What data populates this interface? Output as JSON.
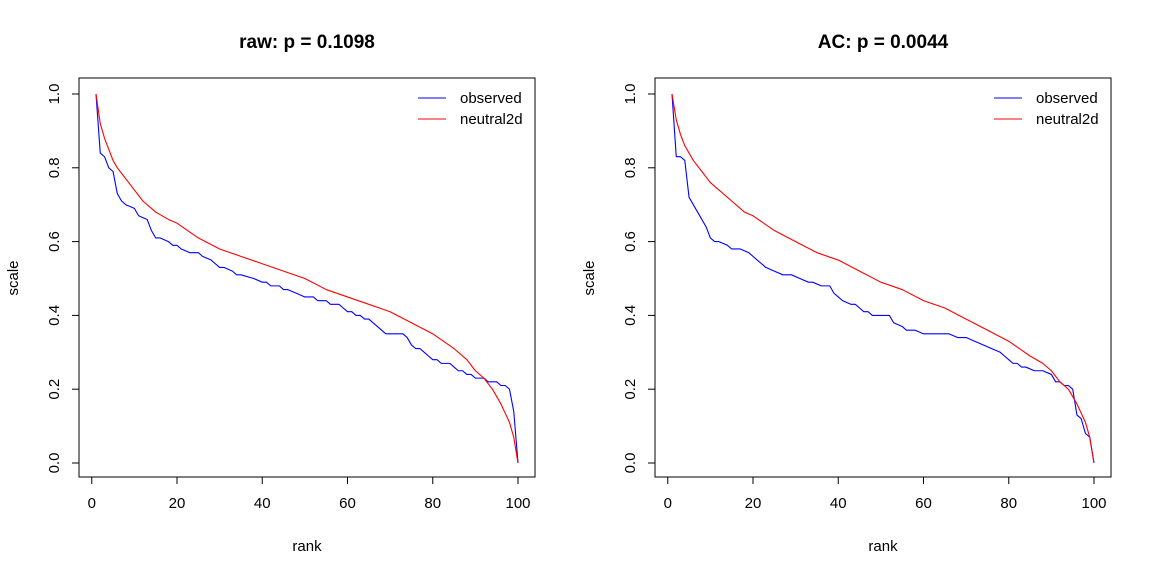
{
  "chart_data": [
    {
      "type": "line",
      "title": "raw: p = 0.1098",
      "xlabel": "rank",
      "ylabel": "scale",
      "xlim": [
        1,
        100
      ],
      "ylim": [
        0,
        1
      ],
      "xticks": [
        0,
        20,
        40,
        60,
        80,
        100
      ],
      "yticks": [
        0.0,
        0.2,
        0.4,
        0.6,
        0.8,
        1.0
      ],
      "xtick_labels": [
        "0",
        "20",
        "40",
        "60",
        "80",
        "100"
      ],
      "ytick_labels": [
        "0.0",
        "0.2",
        "0.4",
        "0.6",
        "0.8",
        "1.0"
      ],
      "legend_position": "top-right",
      "grid": false,
      "series": [
        {
          "name": "observed",
          "color": "#0000ff",
          "x": [
            1,
            2,
            3,
            4,
            5,
            6,
            7,
            8,
            10,
            11,
            13,
            14,
            15,
            16,
            18,
            19,
            20,
            21,
            23,
            25,
            26,
            28,
            29,
            30,
            31,
            33,
            34,
            35,
            38,
            40,
            41,
            42,
            43,
            44,
            45,
            46,
            48,
            50,
            52,
            53,
            55,
            56,
            58,
            59,
            60,
            61,
            62,
            63,
            64,
            65,
            66,
            67,
            68,
            69,
            70,
            71,
            72,
            73,
            74,
            75,
            76,
            77,
            78,
            79,
            80,
            81,
            82,
            83,
            84,
            85,
            86,
            87,
            88,
            89,
            90,
            91,
            92,
            93,
            94,
            95,
            96,
            97,
            98,
            99,
            100
          ],
          "y": [
            1.0,
            0.84,
            0.83,
            0.8,
            0.79,
            0.73,
            0.71,
            0.7,
            0.69,
            0.67,
            0.66,
            0.63,
            0.61,
            0.61,
            0.6,
            0.59,
            0.59,
            0.58,
            0.57,
            0.57,
            0.56,
            0.55,
            0.54,
            0.53,
            0.53,
            0.52,
            0.51,
            0.51,
            0.5,
            0.49,
            0.49,
            0.48,
            0.48,
            0.48,
            0.47,
            0.47,
            0.46,
            0.45,
            0.45,
            0.44,
            0.44,
            0.43,
            0.43,
            0.42,
            0.41,
            0.41,
            0.4,
            0.4,
            0.39,
            0.39,
            0.38,
            0.37,
            0.36,
            0.35,
            0.35,
            0.35,
            0.35,
            0.35,
            0.34,
            0.32,
            0.31,
            0.31,
            0.3,
            0.29,
            0.28,
            0.28,
            0.27,
            0.27,
            0.27,
            0.26,
            0.25,
            0.25,
            0.24,
            0.24,
            0.23,
            0.23,
            0.23,
            0.22,
            0.22,
            0.22,
            0.21,
            0.21,
            0.2,
            0.14,
            0.0
          ]
        },
        {
          "name": "neutral2d",
          "color": "#ff0000",
          "x": [
            1,
            2,
            3,
            4,
            5,
            6,
            8,
            10,
            12,
            15,
            18,
            20,
            25,
            30,
            35,
            40,
            45,
            50,
            55,
            60,
            65,
            70,
            75,
            80,
            85,
            88,
            90,
            92,
            94,
            96,
            98,
            99,
            100
          ],
          "y": [
            1.0,
            0.92,
            0.88,
            0.85,
            0.82,
            0.8,
            0.77,
            0.74,
            0.71,
            0.68,
            0.66,
            0.65,
            0.61,
            0.58,
            0.56,
            0.54,
            0.52,
            0.5,
            0.47,
            0.45,
            0.43,
            0.41,
            0.38,
            0.35,
            0.31,
            0.28,
            0.25,
            0.23,
            0.2,
            0.16,
            0.11,
            0.07,
            0.0
          ]
        }
      ]
    },
    {
      "type": "line",
      "title": "AC: p = 0.0044",
      "xlabel": "rank",
      "ylabel": "scale",
      "xlim": [
        1,
        100
      ],
      "ylim": [
        0,
        1
      ],
      "xticks": [
        0,
        20,
        40,
        60,
        80,
        100
      ],
      "yticks": [
        0.0,
        0.2,
        0.4,
        0.6,
        0.8,
        1.0
      ],
      "xtick_labels": [
        "0",
        "20",
        "40",
        "60",
        "80",
        "100"
      ],
      "ytick_labels": [
        "0.0",
        "0.2",
        "0.4",
        "0.6",
        "0.8",
        "1.0"
      ],
      "legend_position": "top-right",
      "grid": false,
      "series": [
        {
          "name": "observed",
          "color": "#0000ff",
          "x": [
            1,
            2,
            3,
            4,
            5,
            6,
            7,
            8,
            9,
            10,
            11,
            12,
            14,
            15,
            17,
            19,
            20,
            21,
            22,
            23,
            25,
            27,
            29,
            31,
            33,
            34,
            36,
            38,
            39,
            40,
            41,
            43,
            44,
            45,
            46,
            47,
            48,
            50,
            52,
            53,
            55,
            56,
            58,
            60,
            62,
            64,
            66,
            68,
            70,
            72,
            74,
            76,
            78,
            79,
            80,
            81,
            82,
            83,
            84,
            86,
            88,
            90,
            91,
            92,
            93,
            94,
            95,
            96,
            97,
            98,
            99,
            100
          ],
          "y": [
            1.0,
            0.83,
            0.83,
            0.82,
            0.72,
            0.7,
            0.68,
            0.66,
            0.64,
            0.61,
            0.6,
            0.6,
            0.59,
            0.58,
            0.58,
            0.57,
            0.56,
            0.55,
            0.54,
            0.53,
            0.52,
            0.51,
            0.51,
            0.5,
            0.49,
            0.49,
            0.48,
            0.48,
            0.46,
            0.45,
            0.44,
            0.43,
            0.43,
            0.42,
            0.41,
            0.41,
            0.4,
            0.4,
            0.4,
            0.38,
            0.37,
            0.36,
            0.36,
            0.35,
            0.35,
            0.35,
            0.35,
            0.34,
            0.34,
            0.33,
            0.32,
            0.31,
            0.3,
            0.29,
            0.28,
            0.27,
            0.27,
            0.26,
            0.26,
            0.25,
            0.25,
            0.24,
            0.22,
            0.22,
            0.21,
            0.21,
            0.2,
            0.13,
            0.12,
            0.08,
            0.07,
            0.0
          ]
        },
        {
          "name": "neutral2d",
          "color": "#ff0000",
          "x": [
            1,
            2,
            3,
            4,
            5,
            6,
            8,
            10,
            12,
            15,
            18,
            20,
            25,
            30,
            35,
            40,
            45,
            50,
            55,
            60,
            65,
            70,
            75,
            80,
            85,
            88,
            90,
            92,
            94,
            96,
            98,
            99,
            100
          ],
          "y": [
            1.0,
            0.93,
            0.89,
            0.86,
            0.84,
            0.82,
            0.79,
            0.76,
            0.74,
            0.71,
            0.68,
            0.67,
            0.63,
            0.6,
            0.57,
            0.55,
            0.52,
            0.49,
            0.47,
            0.44,
            0.42,
            0.39,
            0.36,
            0.33,
            0.29,
            0.27,
            0.25,
            0.22,
            0.2,
            0.16,
            0.11,
            0.07,
            0.0
          ]
        }
      ]
    }
  ]
}
